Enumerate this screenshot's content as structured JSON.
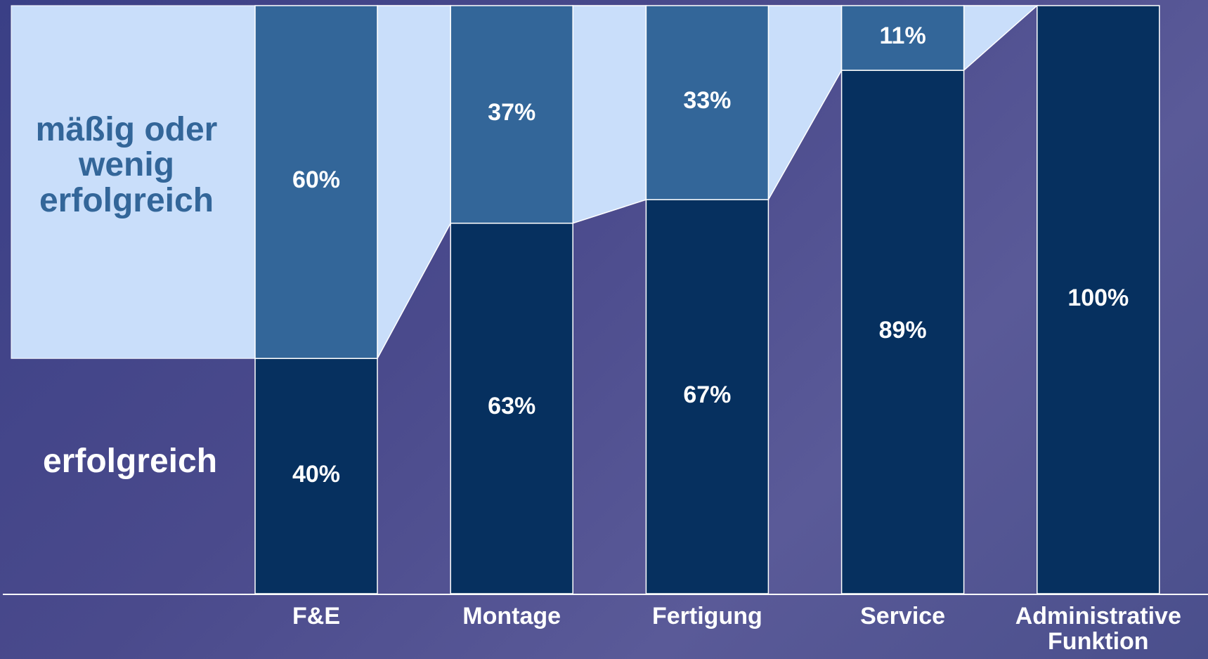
{
  "chart_data": {
    "type": "stacked-bar",
    "categories": [
      "F&E",
      "Montage",
      "Fertigung",
      "Service",
      "Administrative Funktion"
    ],
    "series": [
      {
        "name": "erfolgreich",
        "color": "#06305f",
        "values": [
          40,
          63,
          67,
          89,
          100
        ],
        "value_labels": [
          "40%",
          "63%",
          "67%",
          "89%",
          "100%"
        ]
      },
      {
        "name": "mäßig oder wenig erfolgreich",
        "color": "#336699",
        "values": [
          60,
          37,
          33,
          11,
          null
        ],
        "value_labels": [
          "60%",
          "37%",
          "33%",
          "11%",
          null
        ]
      }
    ],
    "ylim": [
      0,
      100
    ],
    "connector_color": "#c9defa"
  }
}
